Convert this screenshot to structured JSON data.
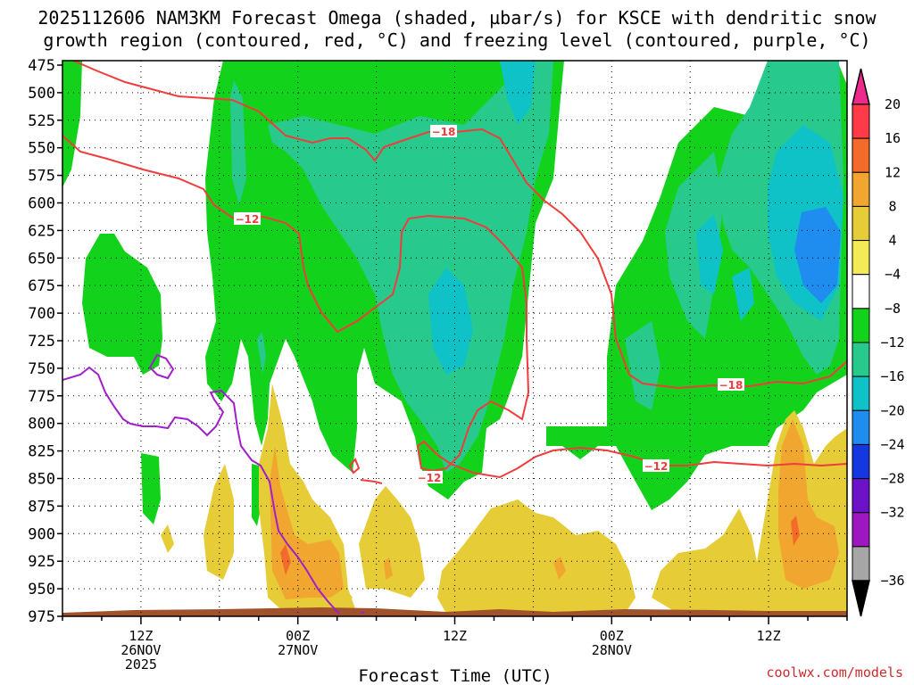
{
  "title_line1": "2025112606 NAM3KM Forecast Omega (shaded, µbar/s) for KSCE with dendritic snow",
  "title_line2": "growth region (contoured, red, °C) and freezing level (contoured, purple, °C)",
  "credit": "coolwx.com/models",
  "chart_data": {
    "type": "heatmap",
    "xlabel": "Forecast Time (UTC)",
    "ylabel": "",
    "y_ticks": [
      475,
      500,
      525,
      550,
      575,
      600,
      625,
      650,
      675,
      700,
      725,
      750,
      775,
      800,
      825,
      850,
      875,
      900,
      925,
      950,
      975
    ],
    "x_ticks": [
      {
        "l1": "12Z",
        "l2": "26NOV",
        "l3": "2025",
        "hour": 6
      },
      {
        "l1": "00Z",
        "l2": "27NOV",
        "l3": "",
        "hour": 18
      },
      {
        "l1": "12Z",
        "l2": "",
        "l3": "",
        "hour": 30
      },
      {
        "l1": "00Z",
        "l2": "28NOV",
        "l3": "",
        "hour": 42
      },
      {
        "l1": "12Z",
        "l2": "",
        "l3": "",
        "hour": 54
      }
    ],
    "x_range_hours": [
      0,
      60
    ],
    "y_range_mb": [
      475,
      975
    ],
    "colorbar": {
      "labels": [
        "20",
        "16",
        "12",
        "8",
        "4",
        "−4",
        "−8",
        "−12",
        "−16",
        "−20",
        "−24",
        "−28",
        "−32",
        "−36"
      ],
      "colors": [
        "#ff3b4a",
        "#f46a2a",
        "#f0a62f",
        "#e6cc37",
        "#f2eb55",
        "#ffffff",
        "#13d21b",
        "#28c98c",
        "#0ec2c8",
        "#1f8cf0",
        "#1437e0",
        "#6c12c8",
        "#9e18c0",
        "#a6a6a6"
      ],
      "top_arrow": "#ee2a8c",
      "bottom_arrow": "#000000"
    },
    "contour_labels": {
      "dgz_upper": "−18",
      "dgz_lower": "−12"
    },
    "series": [
      {
        "name": "Omega (shaded, µbar/s)",
        "values": []
      },
      {
        "name": "dendritic snow growth region (contoured, red, °C)",
        "values": [
          -18,
          -12
        ]
      },
      {
        "name": "freezing level (contoured, purple, °C)",
        "values": []
      }
    ]
  }
}
